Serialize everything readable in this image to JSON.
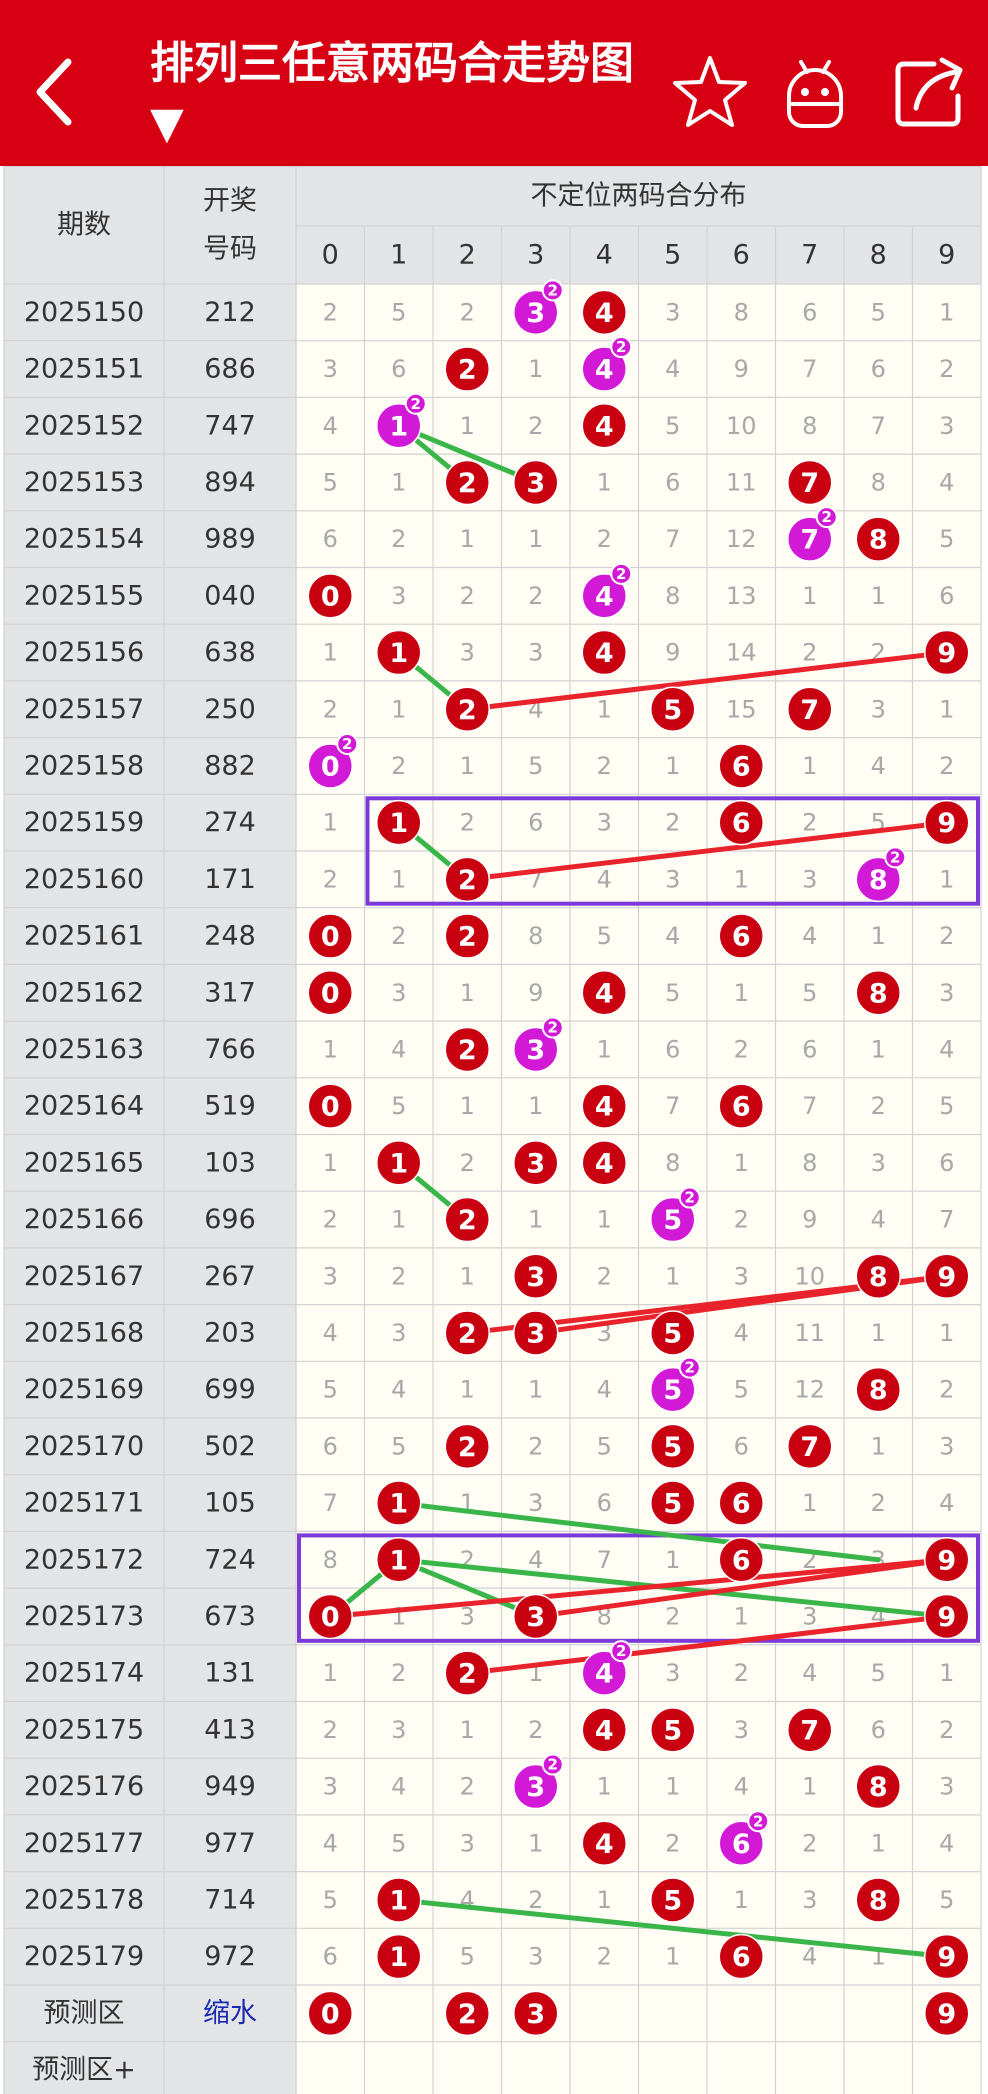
{
  "header": {
    "title": "排列三任意两码合走势图 ▼",
    "icons": [
      "back-arrow-icon",
      "star-icon",
      "android-icon",
      "share-icon"
    ]
  },
  "table": {
    "col_issue": "期数",
    "col_draw_line1": "开奖",
    "col_draw_line2": "号码",
    "group_header": "不定位两码合分布",
    "digits": [
      "0",
      "1",
      "2",
      "3",
      "4",
      "5",
      "6",
      "7",
      "8",
      "9"
    ],
    "rows": [
      {
        "issue": "2025150",
        "draw": "212",
        "cells": [
          2,
          5,
          2,
          3,
          4,
          3,
          8,
          6,
          5,
          1
        ],
        "hits": [
          3,
          4
        ],
        "double": [
          3
        ]
      },
      {
        "issue": "2025151",
        "draw": "686",
        "cells": [
          3,
          6,
          2,
          1,
          4,
          4,
          9,
          7,
          6,
          2
        ],
        "hits": [
          2,
          4
        ],
        "double": [
          4
        ]
      },
      {
        "issue": "2025152",
        "draw": "747",
        "cells": [
          4,
          1,
          1,
          2,
          4,
          5,
          10,
          8,
          7,
          3
        ],
        "hits": [
          1,
          4
        ],
        "double": [
          1
        ]
      },
      {
        "issue": "2025153",
        "draw": "894",
        "cells": [
          5,
          1,
          2,
          3,
          1,
          6,
          11,
          7,
          8,
          4
        ],
        "hits": [
          2,
          3,
          7
        ],
        "double": []
      },
      {
        "issue": "2025154",
        "draw": "989",
        "cells": [
          6,
          2,
          1,
          1,
          2,
          7,
          12,
          7,
          8,
          5
        ],
        "hits": [
          7,
          8
        ],
        "double": [
          7
        ]
      },
      {
        "issue": "2025155",
        "draw": "040",
        "cells": [
          0,
          3,
          2,
          2,
          4,
          8,
          13,
          1,
          1,
          6
        ],
        "hits": [
          0,
          4
        ],
        "double": [
          4
        ]
      },
      {
        "issue": "2025156",
        "draw": "638",
        "cells": [
          1,
          1,
          3,
          3,
          4,
          9,
          14,
          2,
          2,
          9
        ],
        "hits": [
          1,
          4,
          9
        ],
        "double": []
      },
      {
        "issue": "2025157",
        "draw": "250",
        "cells": [
          2,
          1,
          2,
          4,
          1,
          5,
          15,
          7,
          3,
          1
        ],
        "hits": [
          2,
          5,
          7
        ],
        "double": []
      },
      {
        "issue": "2025158",
        "draw": "882",
        "cells": [
          0,
          2,
          1,
          5,
          2,
          1,
          6,
          1,
          4,
          2
        ],
        "hits": [
          0,
          6
        ],
        "double": [
          0
        ]
      },
      {
        "issue": "2025159",
        "draw": "274",
        "cells": [
          1,
          1,
          2,
          6,
          3,
          2,
          6,
          2,
          5,
          9
        ],
        "hits": [
          1,
          6,
          9
        ],
        "double": []
      },
      {
        "issue": "2025160",
        "draw": "171",
        "cells": [
          2,
          1,
          2,
          7,
          4,
          3,
          1,
          3,
          8,
          1
        ],
        "hits": [
          2,
          8
        ],
        "double": [
          8
        ]
      },
      {
        "issue": "2025161",
        "draw": "248",
        "cells": [
          0,
          2,
          2,
          8,
          5,
          4,
          6,
          4,
          1,
          2
        ],
        "hits": [
          0,
          2,
          6
        ],
        "double": []
      },
      {
        "issue": "2025162",
        "draw": "317",
        "cells": [
          0,
          3,
          1,
          9,
          4,
          5,
          1,
          5,
          8,
          3
        ],
        "hits": [
          0,
          4,
          8
        ],
        "double": []
      },
      {
        "issue": "2025163",
        "draw": "766",
        "cells": [
          1,
          4,
          2,
          3,
          1,
          6,
          2,
          6,
          1,
          4
        ],
        "hits": [
          2,
          3
        ],
        "double": [
          3
        ]
      },
      {
        "issue": "2025164",
        "draw": "519",
        "cells": [
          0,
          5,
          1,
          1,
          4,
          7,
          6,
          7,
          2,
          5
        ],
        "hits": [
          0,
          4,
          6
        ],
        "double": []
      },
      {
        "issue": "2025165",
        "draw": "103",
        "cells": [
          1,
          1,
          2,
          3,
          4,
          8,
          1,
          8,
          3,
          6
        ],
        "hits": [
          1,
          3,
          4
        ],
        "double": []
      },
      {
        "issue": "2025166",
        "draw": "696",
        "cells": [
          2,
          1,
          2,
          1,
          1,
          5,
          2,
          9,
          4,
          7
        ],
        "hits": [
          2,
          5
        ],
        "double": [
          5
        ]
      },
      {
        "issue": "2025167",
        "draw": "267",
        "cells": [
          3,
          2,
          1,
          3,
          2,
          1,
          3,
          10,
          8,
          9
        ],
        "hits": [
          3,
          8,
          9
        ],
        "double": []
      },
      {
        "issue": "2025168",
        "draw": "203",
        "cells": [
          4,
          3,
          2,
          3,
          3,
          5,
          4,
          11,
          1,
          1
        ],
        "hits": [
          2,
          3,
          5
        ],
        "double": []
      },
      {
        "issue": "2025169",
        "draw": "699",
        "cells": [
          5,
          4,
          1,
          1,
          4,
          5,
          5,
          12,
          8,
          2
        ],
        "hits": [
          5,
          8
        ],
        "double": [
          5
        ]
      },
      {
        "issue": "2025170",
        "draw": "502",
        "cells": [
          6,
          5,
          2,
          2,
          5,
          5,
          6,
          7,
          1,
          3
        ],
        "hits": [
          2,
          5,
          7
        ],
        "double": []
      },
      {
        "issue": "2025171",
        "draw": "105",
        "cells": [
          7,
          1,
          1,
          3,
          6,
          5,
          6,
          1,
          2,
          4
        ],
        "hits": [
          1,
          5,
          6
        ],
        "double": []
      },
      {
        "issue": "2025172",
        "draw": "724",
        "cells": [
          8,
          1,
          2,
          4,
          7,
          1,
          6,
          2,
          3,
          9
        ],
        "hits": [
          1,
          6,
          9
        ],
        "double": []
      },
      {
        "issue": "2025173",
        "draw": "673",
        "cells": [
          0,
          1,
          3,
          3,
          8,
          2,
          1,
          3,
          4,
          9
        ],
        "hits": [
          0,
          3,
          9
        ],
        "double": []
      },
      {
        "issue": "2025174",
        "draw": "131",
        "cells": [
          1,
          2,
          2,
          1,
          4,
          3,
          2,
          4,
          5,
          1
        ],
        "hits": [
          2,
          4
        ],
        "double": [
          4
        ]
      },
      {
        "issue": "2025175",
        "draw": "413",
        "cells": [
          2,
          3,
          1,
          2,
          4,
          5,
          3,
          7,
          6,
          2
        ],
        "hits": [
          4,
          5,
          7
        ],
        "double": []
      },
      {
        "issue": "2025176",
        "draw": "949",
        "cells": [
          3,
          4,
          2,
          3,
          1,
          1,
          4,
          1,
          8,
          3
        ],
        "hits": [
          3,
          8
        ],
        "double": [
          3
        ]
      },
      {
        "issue": "2025177",
        "draw": "977",
        "cells": [
          4,
          5,
          3,
          1,
          4,
          2,
          6,
          2,
          1,
          4
        ],
        "hits": [
          4,
          6
        ],
        "double": [
          6
        ]
      },
      {
        "issue": "2025178",
        "draw": "714",
        "cells": [
          5,
          1,
          4,
          2,
          1,
          5,
          1,
          3,
          8,
          5
        ],
        "hits": [
          1,
          5,
          8
        ],
        "double": []
      },
      {
        "issue": "2025179",
        "draw": "972",
        "cells": [
          6,
          1,
          5,
          3,
          2,
          1,
          6,
          4,
          1,
          9
        ],
        "hits": [
          1,
          6,
          9
        ],
        "double": []
      }
    ],
    "prediction": {
      "label": "预测区",
      "link": "缩水",
      "values": [
        "0",
        "",
        "2",
        "3",
        "",
        "",
        "",
        "",
        "",
        "9"
      ]
    },
    "prediction_plus": {
      "label": "预测区+"
    },
    "double_mark": "2"
  },
  "colors": {
    "header_red": "#d60012",
    "ball_red": "#c8000f",
    "ball_magenta": "#d219d6",
    "green_line": "#3ab54a",
    "red_line": "#e8232b",
    "box_purple": "#7b3ad9",
    "label_bg": "#e3e4e6",
    "cell_bg": "#fffdf4",
    "miss_text": "#a8a8a8",
    "link_blue": "#1b28b0"
  },
  "annotations": {
    "green_lines": [
      [
        2,
        1,
        3,
        2
      ],
      [
        2,
        1,
        3,
        3
      ],
      [
        6,
        1,
        7,
        2
      ],
      [
        9,
        1,
        10,
        2
      ],
      [
        15,
        1,
        16,
        2
      ],
      [
        21,
        1,
        22,
        8
      ],
      [
        22,
        1,
        23,
        0
      ],
      [
        22,
        1,
        23,
        3
      ],
      [
        22,
        1,
        23,
        9
      ],
      [
        28,
        1,
        29,
        9
      ]
    ],
    "red_lines": [
      [
        6,
        9,
        7,
        2
      ],
      [
        9,
        9,
        10,
        2
      ],
      [
        17,
        9,
        18,
        2
      ],
      [
        17,
        9,
        18,
        3
      ],
      [
        22,
        9,
        23,
        0
      ],
      [
        22,
        9,
        23,
        3
      ],
      [
        23,
        9,
        24,
        2
      ]
    ],
    "boxes": [
      [
        9,
        10,
        1,
        9
      ],
      [
        22,
        23,
        0,
        9
      ]
    ]
  }
}
